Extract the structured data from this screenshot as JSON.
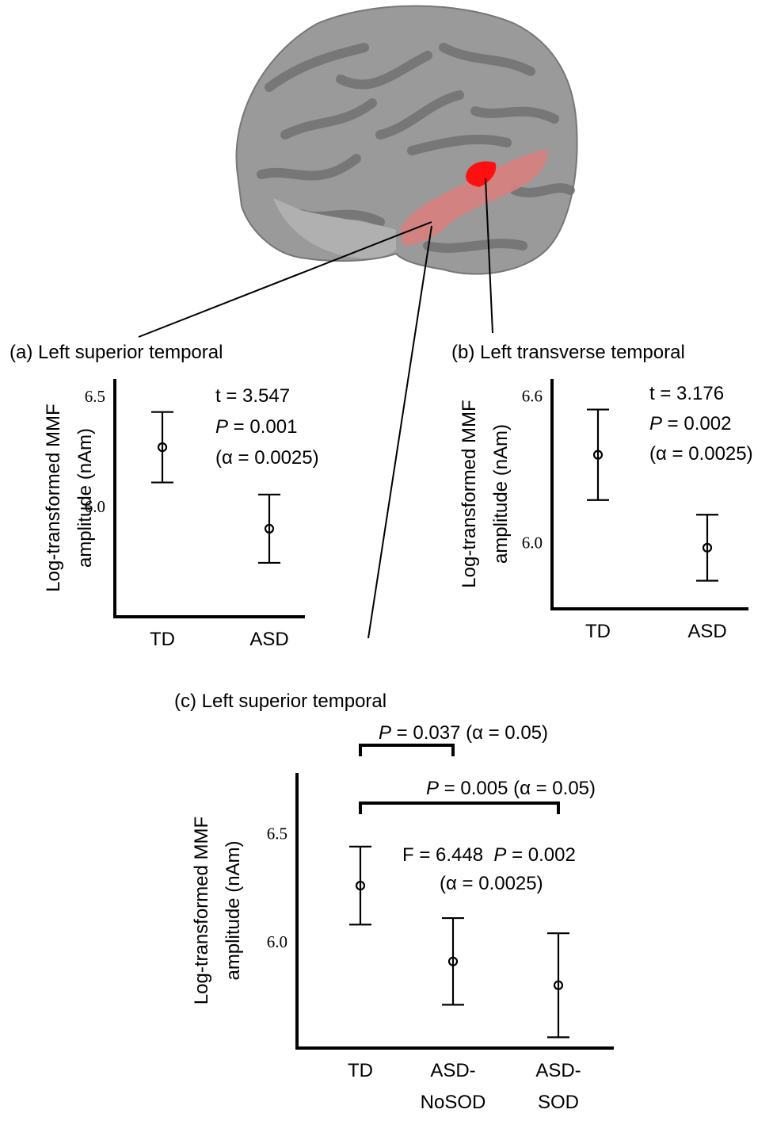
{
  "chart_data": [
    {
      "type": "errorbar",
      "title": "(a) Left superior temporal",
      "y_label": [
        "Log-transformed MMF",
        "amplitude (nAm)"
      ],
      "categories": [
        "TD",
        "ASD"
      ],
      "values": [
        6.27,
        5.9
      ],
      "errors": [
        0.16,
        0.155
      ],
      "color": "#000000",
      "ylim": [
        5.5,
        6.58
      ],
      "yticks": [
        {
          "value": 6,
          "label": "6.0"
        },
        6.5
      ],
      "annotations": [
        [
          {
            "text": "t = 3.547"
          }
        ],
        [
          {
            "text": "P",
            "italic": true
          },
          {
            "text": " = 0.001"
          }
        ],
        [
          {
            "text": "(α = 0.0025)"
          }
        ]
      ]
    },
    {
      "type": "errorbar",
      "title": "(b) Left transverse temporal",
      "y_label": [
        "Log-transformed MMF",
        "amplitude (nAm)"
      ],
      "categories": [
        "TD",
        "ASD"
      ],
      "values": [
        6.36,
        5.98
      ],
      "errors": [
        0.185,
        0.135
      ],
      "color": "#000000",
      "ylim": [
        5.73,
        6.67
      ],
      "yticks": [
        {
          "value": 6,
          "label": "6.0"
        },
        6.6
      ],
      "annotations": [
        [
          {
            "text": "t = 3.176"
          }
        ],
        [
          {
            "text": "P",
            "italic": true
          },
          {
            "text": " = 0.002"
          }
        ],
        [
          {
            "text": "(α = 0.0025)"
          }
        ]
      ]
    },
    {
      "type": "errorbar",
      "title": "(c) Left superior temporal",
      "y_label": [
        "Log-transformed MMF",
        "amplitude (nAm)"
      ],
      "categories": [
        "TD",
        "ASD-NoSOD",
        "ASD-SOD"
      ],
      "values": [
        6.26,
        5.91,
        5.8
      ],
      "errors": [
        0.18,
        0.2,
        0.24
      ],
      "color": "#000000",
      "ylim": [
        5.51,
        6.78
      ],
      "yticks": [
        {
          "value": 6,
          "label": "6.0"
        },
        6.5
      ],
      "annotations": [
        [
          {
            "text": "F = 6.448  "
          },
          {
            "text": "P",
            "italic": true
          },
          {
            "text": " = 0.002"
          }
        ],
        [
          {
            "text": "(α = 0.0025)"
          }
        ]
      ],
      "brackets": [
        {
          "between": [
            "TD",
            "ASD-NoSOD"
          ],
          "label": [
            {
              "text": "P",
              "italic": true
            },
            {
              "text": " = 0.037 (α = 0.05)"
            }
          ]
        },
        {
          "between": [
            "TD",
            "ASD-SOD"
          ],
          "label": [
            {
              "text": "P",
              "italic": true
            },
            {
              "text": " = 0.005 (α = 0.05)"
            }
          ]
        }
      ]
    }
  ]
}
